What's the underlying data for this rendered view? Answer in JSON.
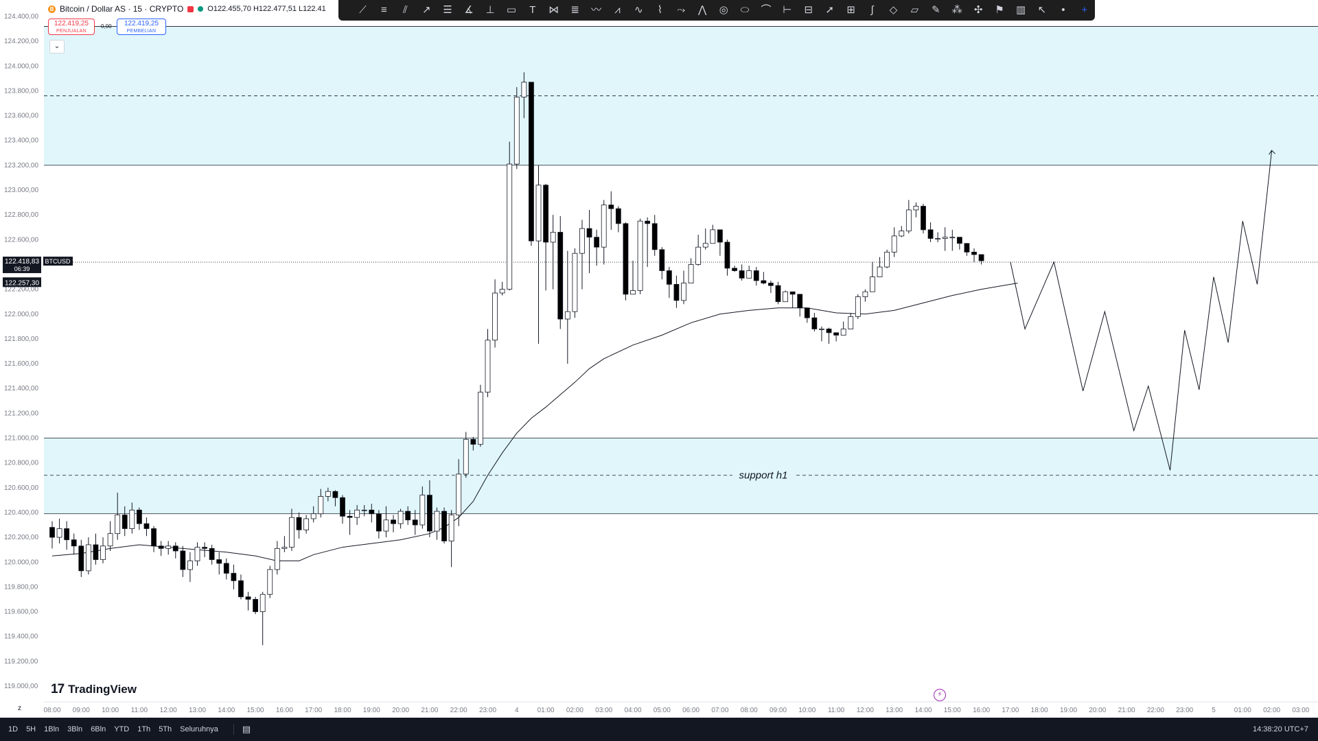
{
  "header": {
    "symbol": "Bitcoin / Dollar AS · 15 · CRYPTO",
    "coin_glyph": "B",
    "ohlc": "O122.455,70 H122.477,51 L122.41"
  },
  "trade": {
    "sell_price": "122.419,25",
    "sell_label": "PENJUALAN",
    "spread": "0,00",
    "buy_price": "122.419,25",
    "buy_label": "PEMBELIAN"
  },
  "collapse_glyph": "⌄",
  "toolbar_icons": [
    "trendline-icon",
    "channel-icon",
    "pitchfork-icon",
    "ray-icon",
    "fib-icon",
    "gann-icon",
    "measure-icon",
    "rectangle-icon",
    "text-icon",
    "xabcd-icon",
    "lines-icon",
    "wave-icon",
    "abc-icon",
    "elliott-icon",
    "brush-icon",
    "path-icon",
    "polyline-icon",
    "circle-icon",
    "ellipse-icon",
    "arc-icon",
    "range-icon",
    "price-range-icon",
    "arrow-icon",
    "crosshair-box-icon",
    "curve-icon",
    "shape-icon",
    "callout-icon",
    "pen-icon",
    "node-icon",
    "magic-icon",
    "flag-icon",
    "bars-icon",
    "cursor-icon",
    "dot-icon",
    "crosshair-icon"
  ],
  "logo": {
    "mark": "17",
    "text": "TradingView"
  },
  "bottom": {
    "z_label": "z",
    "ranges": [
      "1D",
      "5H",
      "1Bln",
      "3Bln",
      "6Bln",
      "YTD",
      "1Th",
      "5Th",
      "Seluruhnya"
    ],
    "clock": "14:38:20 UTC+7"
  },
  "colors": {
    "zone": "#e0f6fb",
    "accent": "#2962ff",
    "sell": "#f23645",
    "buy": "#2962ff",
    "bg": "#ffffff"
  },
  "chart_data": {
    "type": "candlestick",
    "symbol_tag": "BTCUSD",
    "price_label": "122.418,83",
    "countdown": "06:39",
    "secondary_price_label": "122.257,30",
    "current_price": 122418.83,
    "secondary_price": 122257.3,
    "ylim": [
      119000,
      124400
    ],
    "y_ticks": [
      124400,
      124200,
      124000,
      123800,
      123600,
      123400,
      123200,
      123000,
      122800,
      122600,
      122400,
      122200,
      122000,
      121800,
      121600,
      121400,
      121200,
      121000,
      120800,
      120600,
      120400,
      120200,
      120000,
      119800,
      119600,
      119400,
      119200,
      119000
    ],
    "y_tick_labels": [
      "124.400,00",
      "124.200,00",
      "124.000,00",
      "123.800,00",
      "123.600,00",
      "123.400,00",
      "123.200,00",
      "123.000,00",
      "122.800,00",
      "122.600,00",
      "122.400,00",
      "122.200,00",
      "122.000,00",
      "121.800,00",
      "121.600,00",
      "121.400,00",
      "121.200,00",
      "121.000,00",
      "120.800,00",
      "120.600,00",
      "120.400,00",
      "120.200,00",
      "120.000,00",
      "119.800,00",
      "119.600,00",
      "119.400,00",
      "119.200,00",
      "119.000,00"
    ],
    "x_axis": {
      "start_time": 8.0,
      "step_hours": 0.25,
      "span_hours": 44.0,
      "tick_times": [
        8,
        9,
        10,
        11,
        12,
        13,
        14,
        15,
        16,
        17,
        18,
        19,
        20,
        21,
        22,
        23,
        24,
        25,
        26,
        27,
        28,
        29,
        30,
        31,
        32,
        33,
        34,
        35,
        36,
        37,
        38,
        39,
        40,
        41,
        42,
        43,
        44,
        45,
        46,
        47,
        48,
        49,
        50,
        51
      ],
      "tick_labels": [
        "08:00",
        "09:00",
        "10:00",
        "11:00",
        "12:00",
        "13:00",
        "14:00",
        "15:00",
        "16:00",
        "17:00",
        "18:00",
        "19:00",
        "20:00",
        "21:00",
        "22:00",
        "23:00",
        "4",
        "01:00",
        "02:00",
        "03:00",
        "04:00",
        "05:00",
        "06:00",
        "07:00",
        "08:00",
        "09:00",
        "10:00",
        "11:00",
        "12:00",
        "13:00",
        "14:00",
        "15:00",
        "16:00",
        "17:00",
        "18:00",
        "19:00",
        "20:00",
        "21:00",
        "22:00",
        "23:00",
        "5",
        "01:00",
        "02:00",
        "03:00"
      ]
    },
    "candles": [
      [
        120280,
        120200,
        120330,
        120110
      ],
      [
        120200,
        120270,
        120350,
        120150
      ],
      [
        120270,
        120180,
        120330,
        120100
      ],
      [
        120180,
        120130,
        120230,
        120060
      ],
      [
        120130,
        119930,
        120180,
        119880
      ],
      [
        119930,
        120140,
        120200,
        119900
      ],
      [
        120140,
        120020,
        120230,
        119980
      ],
      [
        120020,
        120130,
        120200,
        119990
      ],
      [
        120130,
        120230,
        120330,
        120090
      ],
      [
        120230,
        120380,
        120560,
        120180
      ],
      [
        120380,
        120270,
        120450,
        120210
      ],
      [
        120270,
        120420,
        120480,
        120230
      ],
      [
        120420,
        120310,
        120440,
        120260
      ],
      [
        120310,
        120270,
        120360,
        120210
      ],
      [
        120270,
        120130,
        120290,
        120080
      ],
      [
        120130,
        120110,
        120170,
        120050
      ],
      [
        120110,
        120130,
        120170,
        120060
      ],
      [
        120130,
        120090,
        120160,
        120030
      ],
      [
        120090,
        119940,
        120130,
        119880
      ],
      [
        119940,
        120010,
        120080,
        119840
      ],
      [
        120010,
        120120,
        120160,
        119970
      ],
      [
        120120,
        120110,
        120160,
        120040
      ],
      [
        120110,
        120020,
        120140,
        119980
      ],
      [
        120020,
        119990,
        120080,
        119900
      ],
      [
        119990,
        119910,
        120030,
        119860
      ],
      [
        119910,
        119850,
        119980,
        119780
      ],
      [
        119850,
        119720,
        119900,
        119700
      ],
      [
        119720,
        119700,
        119760,
        119610
      ],
      [
        119700,
        119600,
        119720,
        119580
      ],
      [
        119600,
        119740,
        119760,
        119330
      ],
      [
        119740,
        119940,
        119970,
        119710
      ],
      [
        119940,
        120110,
        120170,
        119900
      ],
      [
        120110,
        120120,
        120210,
        120080
      ],
      [
        120120,
        120360,
        120430,
        120090
      ],
      [
        120360,
        120260,
        120400,
        120190
      ],
      [
        120260,
        120350,
        120380,
        120230
      ],
      [
        120350,
        120390,
        120450,
        120320
      ],
      [
        120390,
        120530,
        120590,
        120360
      ],
      [
        120530,
        120570,
        120600,
        120490
      ],
      [
        120570,
        120520,
        120580,
        120450
      ],
      [
        120520,
        120370,
        120540,
        120310
      ],
      [
        120370,
        120360,
        120420,
        120220
      ],
      [
        120360,
        120420,
        120460,
        120300
      ],
      [
        120420,
        120420,
        120460,
        120370
      ],
      [
        120420,
        120390,
        120470,
        120320
      ],
      [
        120390,
        120250,
        120420,
        120190
      ],
      [
        120250,
        120340,
        120450,
        120200
      ],
      [
        120340,
        120310,
        120380,
        120240
      ],
      [
        120310,
        120410,
        120430,
        120270
      ],
      [
        120410,
        120340,
        120450,
        120300
      ],
      [
        120340,
        120300,
        120420,
        120220
      ],
      [
        120300,
        120540,
        120610,
        120270
      ],
      [
        120540,
        120250,
        120660,
        120200
      ],
      [
        120250,
        120410,
        120440,
        120180
      ],
      [
        120410,
        120170,
        120440,
        120150
      ],
      [
        120170,
        120380,
        120420,
        119960
      ],
      [
        120380,
        120710,
        120830,
        120290
      ],
      [
        120710,
        120990,
        121050,
        120680
      ],
      [
        120990,
        120950,
        121010,
        120900
      ],
      [
        120950,
        121370,
        121430,
        120930
      ],
      [
        121370,
        121790,
        121880,
        121330
      ],
      [
        121790,
        122170,
        122280,
        121730
      ],
      [
        122170,
        122200,
        122260,
        122150
      ],
      [
        122200,
        123210,
        123390,
        122190
      ],
      [
        123210,
        123750,
        123830,
        123170
      ],
      [
        123750,
        123870,
        123950,
        123580
      ],
      [
        123870,
        122590,
        123830,
        122550
      ],
      [
        122590,
        123040,
        123200,
        121760
      ],
      [
        123040,
        122580,
        123050,
        122190
      ],
      [
        122580,
        122660,
        122800,
        122200
      ],
      [
        122660,
        121960,
        122790,
        121880
      ],
      [
        121960,
        122020,
        122510,
        121600
      ],
      [
        122020,
        122490,
        122530,
        121970
      ],
      [
        122490,
        122690,
        122760,
        122200
      ],
      [
        122690,
        122620,
        122840,
        122330
      ],
      [
        122620,
        122540,
        122680,
        122390
      ],
      [
        122540,
        122880,
        122920,
        122400
      ],
      [
        122880,
        122850,
        122990,
        122680
      ],
      [
        122850,
        122730,
        122870,
        122660
      ],
      [
        122730,
        122160,
        122740,
        122110
      ],
      [
        122160,
        122190,
        122430,
        122170
      ],
      [
        122190,
        122750,
        122770,
        122160
      ],
      [
        122750,
        122730,
        122780,
        122380
      ],
      [
        122730,
        122520,
        122800,
        122470
      ],
      [
        122520,
        122350,
        122540,
        122280
      ],
      [
        122350,
        122240,
        122380,
        122130
      ],
      [
        122240,
        122110,
        122310,
        122050
      ],
      [
        122110,
        122250,
        122350,
        122080
      ],
      [
        122250,
        122400,
        122450,
        122290
      ],
      [
        122400,
        122540,
        122640,
        122390
      ],
      [
        122540,
        122570,
        122690,
        122520
      ],
      [
        122570,
        122680,
        122720,
        122580
      ],
      [
        122680,
        122580,
        122630,
        122470
      ],
      [
        122580,
        122370,
        122600,
        122310
      ],
      [
        122370,
        122350,
        122390,
        122340
      ],
      [
        122350,
        122290,
        122400,
        122270
      ],
      [
        122290,
        122350,
        122390,
        122290
      ],
      [
        122350,
        122270,
        122380,
        122230
      ],
      [
        122270,
        122250,
        122340,
        122240
      ],
      [
        122250,
        122230,
        122270,
        122170
      ],
      [
        122230,
        122100,
        122260,
        122080
      ],
      [
        122100,
        122180,
        122190,
        122110
      ],
      [
        122180,
        122160,
        122170,
        122050
      ],
      [
        122160,
        122050,
        122160,
        121980
      ],
      [
        122050,
        121970,
        122050,
        121930
      ],
      [
        121970,
        121880,
        122010,
        121860
      ],
      [
        121880,
        121880,
        121900,
        121780
      ],
      [
        121880,
        121850,
        121890,
        121760
      ],
      [
        121850,
        121830,
        121850,
        121780
      ],
      [
        121830,
        121880,
        121940,
        121860
      ],
      [
        121880,
        121980,
        122010,
        121880
      ],
      [
        121980,
        122140,
        122160,
        121960
      ],
      [
        122140,
        122180,
        122200,
        122100
      ],
      [
        122180,
        122300,
        122420,
        122240
      ],
      [
        122300,
        122380,
        122460,
        122320
      ],
      [
        122380,
        122500,
        122520,
        122370
      ],
      [
        122500,
        122630,
        122700,
        122460
      ],
      [
        122630,
        122670,
        122710,
        122620
      ],
      [
        122670,
        122840,
        122920,
        122650
      ],
      [
        122840,
        122870,
        122900,
        122780
      ],
      [
        122870,
        122680,
        122890,
        122650
      ],
      [
        122680,
        122610,
        122740,
        122580
      ],
      [
        122610,
        122610,
        122660,
        122580
      ],
      [
        122610,
        122620,
        122700,
        122510
      ],
      [
        122620,
        122620,
        122680,
        122510
      ],
      [
        122620,
        122570,
        122590,
        122520
      ],
      [
        122570,
        122500,
        122540,
        122470
      ],
      [
        122500,
        122480,
        122530,
        122420
      ],
      [
        122480,
        122430,
        122480,
        122400
      ]
    ],
    "moving_average": [
      [
        8.0,
        120050
      ],
      [
        9.0,
        120070
      ],
      [
        10.0,
        120110
      ],
      [
        11.0,
        120140
      ],
      [
        12.0,
        120120
      ],
      [
        13.0,
        120100
      ],
      [
        14.0,
        120080
      ],
      [
        15.0,
        120050
      ],
      [
        15.75,
        120010
      ],
      [
        16.5,
        120010
      ],
      [
        17.0,
        120060
      ],
      [
        18.0,
        120120
      ],
      [
        19.0,
        120150
      ],
      [
        20.0,
        120180
      ],
      [
        21.0,
        120230
      ],
      [
        21.5,
        120280
      ],
      [
        22.0,
        120360
      ],
      [
        22.5,
        120490
      ],
      [
        23.0,
        120700
      ],
      [
        23.5,
        120880
      ],
      [
        24.0,
        121040
      ],
      [
        24.5,
        121160
      ],
      [
        25.0,
        121250
      ],
      [
        26.0,
        121450
      ],
      [
        26.5,
        121560
      ],
      [
        27.0,
        121640
      ],
      [
        28.0,
        121750
      ],
      [
        29.0,
        121830
      ],
      [
        30.0,
        121930
      ],
      [
        31.0,
        122000
      ],
      [
        32.0,
        122030
      ],
      [
        33.0,
        122050
      ],
      [
        34.0,
        122050
      ],
      [
        35.0,
        122010
      ],
      [
        36.0,
        122000
      ],
      [
        37.0,
        122030
      ],
      [
        38.0,
        122090
      ],
      [
        39.0,
        122150
      ],
      [
        40.0,
        122200
      ],
      [
        41.0,
        122240
      ],
      [
        41.25,
        122250
      ]
    ],
    "projection_path": [
      [
        41.0,
        122420
      ],
      [
        41.5,
        121880
      ],
      [
        42.0,
        122150
      ],
      [
        42.5,
        122420
      ],
      [
        43.5,
        121380
      ],
      [
        44.25,
        122020
      ],
      [
        45.25,
        121060
      ],
      [
        45.75,
        121420
      ],
      [
        46.5,
        120740
      ],
      [
        47.0,
        121870
      ],
      [
        47.5,
        121390
      ],
      [
        48.0,
        122300
      ],
      [
        48.5,
        121770
      ],
      [
        49.0,
        122750
      ],
      [
        49.5,
        122240
      ],
      [
        50.0,
        123320
      ]
    ],
    "zones": [
      {
        "from": 123200,
        "to": 124320,
        "dash_level": 123760
      },
      {
        "from": 120390,
        "to": 121000,
        "dash_level": 120700,
        "label": "support h1"
      }
    ]
  }
}
